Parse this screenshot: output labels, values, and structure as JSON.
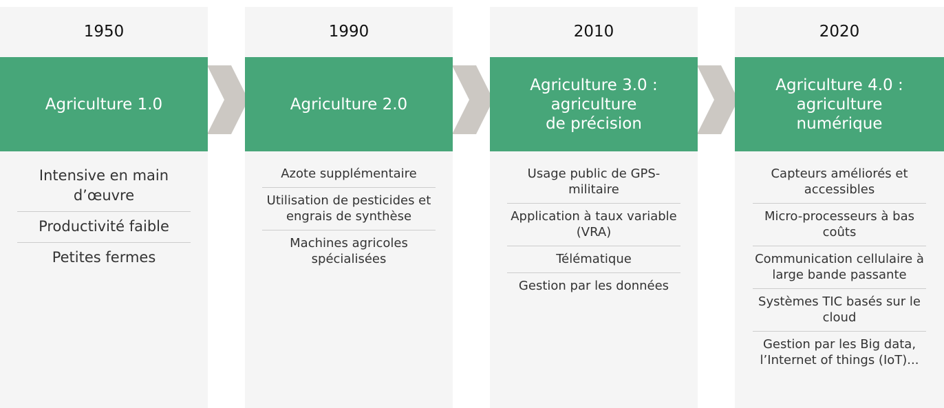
{
  "columns": [
    {
      "year": "1950",
      "title": [
        "Agriculture 1.0"
      ],
      "items": [
        "Intensive en main d’œuvre",
        "Productivité faible",
        "Petites fermes"
      ]
    },
    {
      "year": "1990",
      "title": [
        "Agriculture 2.0"
      ],
      "items": [
        "Azote supplémentaire",
        "Utilisation de pesticides et engrais de synthèse",
        "Machines agricoles spécialisées"
      ]
    },
    {
      "year": "2010",
      "title": [
        "Agriculture 3.0 :",
        "agriculture",
        "de précision"
      ],
      "items": [
        "Usage public de GPS-militaire",
        "Application à taux variable (VRA)",
        "Télématique",
        "Gestion par les données"
      ]
    },
    {
      "year": "2020",
      "title": [
        "Agriculture 4.0 :",
        "agriculture",
        "numérique"
      ],
      "items": [
        "Capteurs améliorés et accessibles",
        "Micro-processeurs à bas coûts",
        "Communication cellulaire à large bande passante",
        "Systèmes TIC basés sur le cloud",
        "Gestion par les Big data, l’Internet of things (IoT)..."
      ]
    }
  ]
}
